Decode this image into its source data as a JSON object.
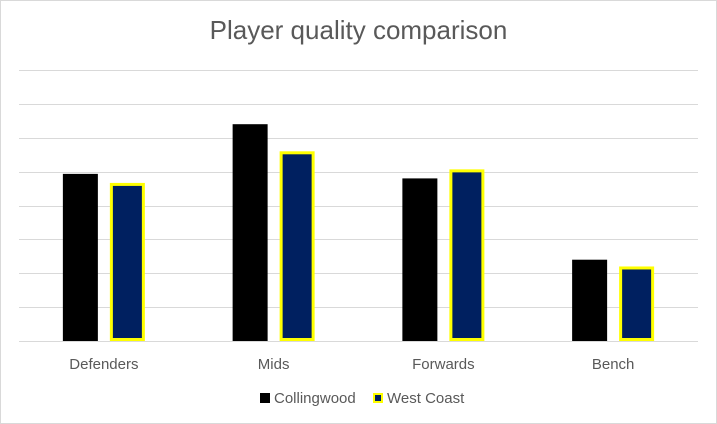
{
  "chart_data": {
    "type": "bar",
    "title": "Player quality comparison",
    "categories": [
      "Defenders",
      "Mids",
      "Forwards",
      "Bench"
    ],
    "series": [
      {
        "name": "Collingwood",
        "values": [
          7.4,
          9.6,
          7.2,
          3.6
        ],
        "color": "#000000",
        "border": "#000000"
      },
      {
        "name": "West Coast",
        "values": [
          7.0,
          8.4,
          7.6,
          3.3
        ],
        "color": "#002060",
        "border": "#ffff00"
      }
    ],
    "ylim": [
      0,
      12
    ],
    "grid": true,
    "legend": "bottom"
  }
}
